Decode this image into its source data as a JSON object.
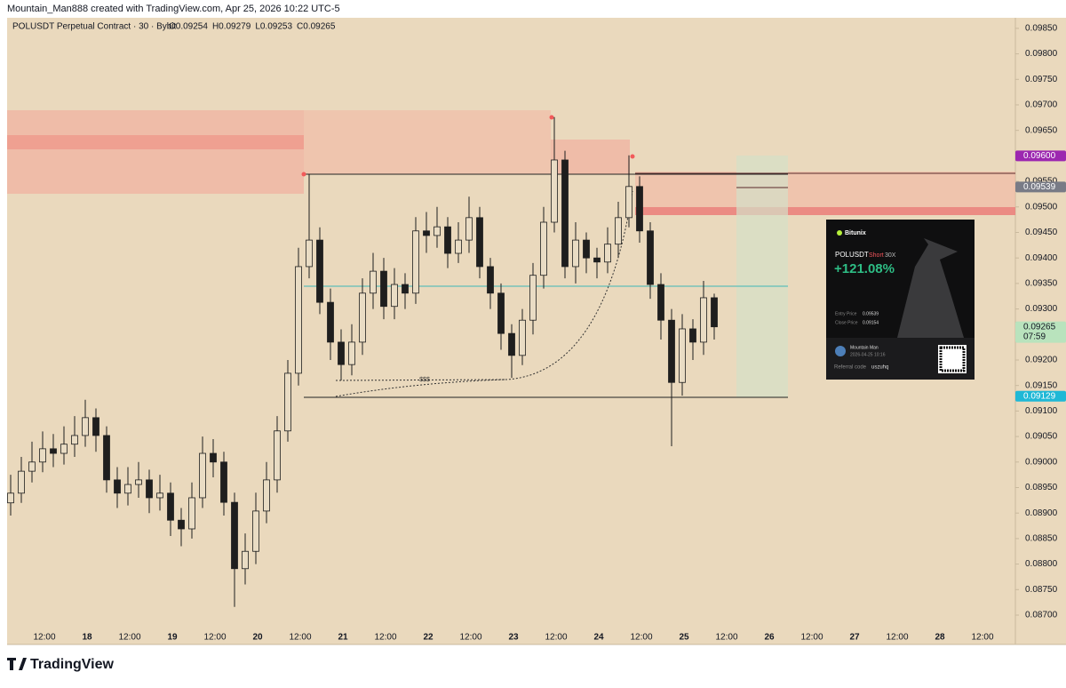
{
  "header": {
    "text": "Mountain_Man888 created with TradingView.com, Apr 25, 2026 10:22 UTC-5"
  },
  "chart_data": {
    "type": "candlestick",
    "title": "POLUSDT Perpetual Contract · 30 · Bybit",
    "ohlc_legend": [
      "O0.09254",
      "H0.09279",
      "L0.09253",
      "C0.09265"
    ],
    "annotation": "$$$",
    "x_labels": [
      "12:00",
      "18",
      "12:00",
      "19",
      "12:00",
      "20",
      "12:00",
      "21",
      "12:00",
      "22",
      "12:00",
      "23",
      "12:00",
      "24",
      "12:00",
      "25",
      "12:00",
      "26",
      "12:00",
      "27",
      "12:00",
      "28",
      "12:00"
    ],
    "ylim": [
      0.086425,
      0.098707
    ],
    "yticks": [
      {
        "value": 0.087,
        "label": "0.08700"
      },
      {
        "value": 0.0875,
        "label": "0.08750"
      },
      {
        "value": 0.088,
        "label": "0.08800"
      },
      {
        "value": 0.0885,
        "label": "0.08850"
      },
      {
        "value": 0.089,
        "label": "0.08900"
      },
      {
        "value": 0.0895,
        "label": "0.08950"
      },
      {
        "value": 0.09,
        "label": "0.09000"
      },
      {
        "value": 0.0905,
        "label": "0.09050"
      },
      {
        "value": 0.091,
        "label": "0.09100"
      },
      {
        "value": 0.0915,
        "label": "0.09150"
      },
      {
        "value": 0.092,
        "label": "0.09200"
      },
      {
        "value": 0.0925,
        "label": "0.09250"
      },
      {
        "value": 0.093,
        "label": "0.09300"
      },
      {
        "value": 0.0935,
        "label": "0.09350"
      },
      {
        "value": 0.094,
        "label": "0.09400"
      },
      {
        "value": 0.0945,
        "label": "0.09450"
      },
      {
        "value": 0.095,
        "label": "0.09500"
      },
      {
        "value": 0.0955,
        "label": "0.09550"
      },
      {
        "value": 0.096,
        "label": "0.09600"
      },
      {
        "value": 0.0965,
        "label": "0.09650"
      },
      {
        "value": 0.097,
        "label": "0.09700"
      },
      {
        "value": 0.0975,
        "label": "0.09750"
      },
      {
        "value": 0.098,
        "label": "0.09800"
      },
      {
        "value": 0.0985,
        "label": "0.09850"
      }
    ],
    "price_labels": [
      {
        "value": 0.096,
        "label": "0.09600",
        "color": "#9c27b0"
      },
      {
        "value": 0.09539,
        "label": "0.09539",
        "color": "#787b86"
      },
      {
        "value": 0.09265,
        "label": "0.09265",
        "color": "#b9e3bd",
        "sub": "07:59"
      },
      {
        "value": 0.09129,
        "label": "0.09129",
        "color": "#1fb8d6"
      }
    ],
    "up_color": "#e9dcc4",
    "down_color": "#1e1e1e",
    "candles": [
      [
        0.0892,
        0.08975,
        0.08895,
        0.08939
      ],
      [
        0.08939,
        0.0901,
        0.0892,
        0.08982
      ],
      [
        0.08982,
        0.0904,
        0.0896,
        0.09
      ],
      [
        0.09,
        0.0906,
        0.0898,
        0.09026
      ],
      [
        0.09026,
        0.09055,
        0.0899,
        0.09017
      ],
      [
        0.09017,
        0.0907,
        0.08995,
        0.09035
      ],
      [
        0.09035,
        0.0909,
        0.0901,
        0.09052
      ],
      [
        0.09052,
        0.09122,
        0.0903,
        0.09087
      ],
      [
        0.09087,
        0.09105,
        0.0902,
        0.09052
      ],
      [
        0.09052,
        0.0907,
        0.0894,
        0.08965
      ],
      [
        0.08965,
        0.0899,
        0.0891,
        0.08939
      ],
      [
        0.08939,
        0.0899,
        0.08915,
        0.08956
      ],
      [
        0.08956,
        0.09,
        0.0893,
        0.08965
      ],
      [
        0.08965,
        0.08985,
        0.089,
        0.0893
      ],
      [
        0.0893,
        0.08975,
        0.08905,
        0.08939
      ],
      [
        0.08939,
        0.0896,
        0.08855,
        0.08886
      ],
      [
        0.08886,
        0.0891,
        0.08835,
        0.08869
      ],
      [
        0.08869,
        0.0896,
        0.0885,
        0.0893
      ],
      [
        0.0893,
        0.0905,
        0.0891,
        0.09017
      ],
      [
        0.09017,
        0.09045,
        0.0897,
        0.09
      ],
      [
        0.09,
        0.0902,
        0.08895,
        0.08921
      ],
      [
        0.08921,
        0.0894,
        0.08716,
        0.08791
      ],
      [
        0.08791,
        0.0886,
        0.0876,
        0.08825
      ],
      [
        0.08825,
        0.0894,
        0.088,
        0.08904
      ],
      [
        0.08904,
        0.09,
        0.0888,
        0.08965
      ],
      [
        0.08965,
        0.0909,
        0.0894,
        0.09061
      ],
      [
        0.09061,
        0.092,
        0.0904,
        0.09174
      ],
      [
        0.09174,
        0.0942,
        0.0915,
        0.09383
      ],
      [
        0.09383,
        0.09564,
        0.0936,
        0.09435
      ],
      [
        0.09435,
        0.0946,
        0.0929,
        0.09313
      ],
      [
        0.09313,
        0.0934,
        0.092,
        0.09235
      ],
      [
        0.09235,
        0.0926,
        0.0916,
        0.09191
      ],
      [
        0.09191,
        0.0927,
        0.0917,
        0.09235
      ],
      [
        0.09235,
        0.0936,
        0.0921,
        0.09331
      ],
      [
        0.09331,
        0.0941,
        0.093,
        0.09374
      ],
      [
        0.09374,
        0.094,
        0.0928,
        0.09305
      ],
      [
        0.09305,
        0.0938,
        0.0928,
        0.09348
      ],
      [
        0.09348,
        0.0937,
        0.093,
        0.09331
      ],
      [
        0.09331,
        0.0948,
        0.0931,
        0.09453
      ],
      [
        0.09453,
        0.0949,
        0.0941,
        0.09444
      ],
      [
        0.09444,
        0.095,
        0.0942,
        0.09461
      ],
      [
        0.09461,
        0.0948,
        0.0938,
        0.09409
      ],
      [
        0.09409,
        0.0947,
        0.0939,
        0.09435
      ],
      [
        0.09435,
        0.0952,
        0.0941,
        0.09479
      ],
      [
        0.09479,
        0.095,
        0.0936,
        0.09383
      ],
      [
        0.09383,
        0.094,
        0.093,
        0.09331
      ],
      [
        0.09331,
        0.0935,
        0.0922,
        0.09252
      ],
      [
        0.09252,
        0.0927,
        0.09165,
        0.09209
      ],
      [
        0.09209,
        0.093,
        0.0919,
        0.09278
      ],
      [
        0.09278,
        0.0939,
        0.0925,
        0.09366
      ],
      [
        0.09366,
        0.095,
        0.0934,
        0.0947
      ],
      [
        0.0947,
        0.09676,
        0.0945,
        0.09592
      ],
      [
        0.09592,
        0.0961,
        0.0936,
        0.09383
      ],
      [
        0.09383,
        0.0947,
        0.0935,
        0.09435
      ],
      [
        0.09435,
        0.0945,
        0.0937,
        0.094
      ],
      [
        0.094,
        0.0942,
        0.0936,
        0.09392
      ],
      [
        0.09392,
        0.0946,
        0.0937,
        0.09427
      ],
      [
        0.09427,
        0.0951,
        0.094,
        0.09479
      ],
      [
        0.09479,
        0.09601,
        0.0946,
        0.0954
      ],
      [
        0.0954,
        0.0956,
        0.0943,
        0.09453
      ],
      [
        0.09453,
        0.0947,
        0.0932,
        0.09348
      ],
      [
        0.09348,
        0.0937,
        0.0924,
        0.09278
      ],
      [
        0.09278,
        0.093,
        0.09031,
        0.09156
      ],
      [
        0.09156,
        0.0929,
        0.0913,
        0.09261
      ],
      [
        0.09261,
        0.0928,
        0.092,
        0.09235
      ],
      [
        0.09235,
        0.09355,
        0.0921,
        0.09322
      ],
      [
        0.09322,
        0.0933,
        0.0924,
        0.09265
      ]
    ]
  },
  "card": {
    "brand": "Bitunix",
    "pair": "POLUSDT",
    "side": "Short",
    "leverage": "30X",
    "pnl": "+121.08%",
    "entry_label": "Entry Price",
    "entry": "0.09539",
    "close_label": "Close Price",
    "close": "0.09154",
    "user": "Mountain Man",
    "time": "2026-04-25 10:16",
    "referral_label": "Referral code",
    "referral": "uszuhq"
  },
  "footer": {
    "brand": "TradingView"
  }
}
